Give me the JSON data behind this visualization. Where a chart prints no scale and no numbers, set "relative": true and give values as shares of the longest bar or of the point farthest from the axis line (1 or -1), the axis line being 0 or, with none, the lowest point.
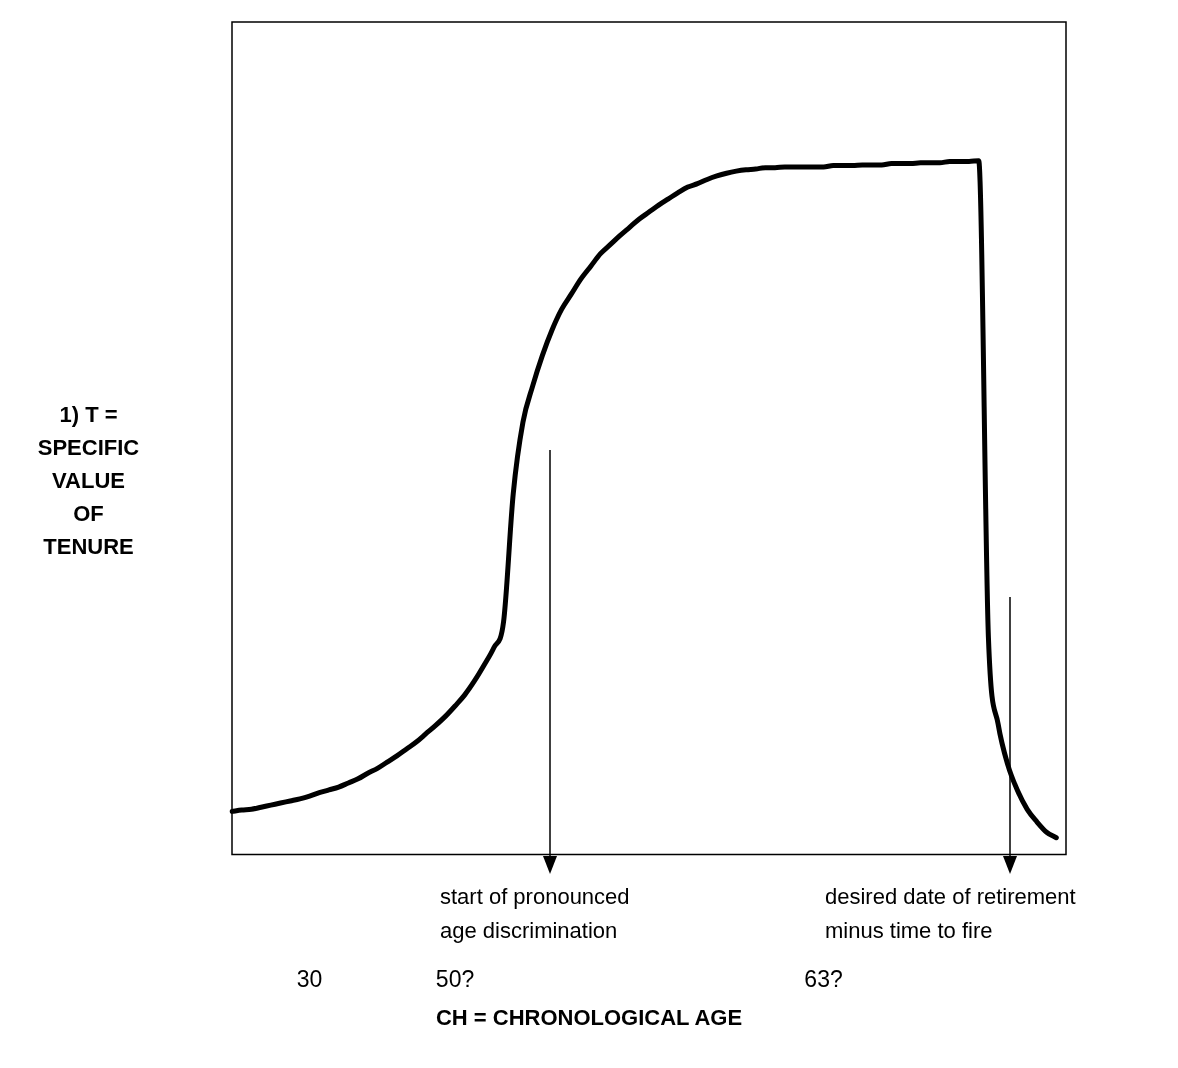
{
  "chart_data": {
    "type": "line",
    "relative": true,
    "xlabel": "CH = CHRONOLOGICAL AGE",
    "ylabel": "1) T = SPECIFIC VALUE OF TENURE",
    "annotations": [
      "start of pronounced age discrimination",
      "desired date of retirement minus time to fire"
    ],
    "categories": [
      null,
      null,
      null,
      null,
      null,
      null,
      null,
      null,
      "30",
      null,
      null,
      null,
      null,
      null,
      null,
      null,
      null,
      null,
      null,
      null,
      null,
      null,
      null,
      "50?",
      null,
      null,
      null,
      null,
      null,
      null,
      null,
      null,
      null,
      null,
      null,
      null,
      null,
      null,
      null,
      null,
      null,
      null,
      null,
      null,
      null,
      null,
      null,
      null,
      null,
      null,
      null,
      null,
      null,
      null,
      null,
      null,
      null,
      null,
      null,
      null,
      null,
      "63?",
      null,
      null,
      null,
      null,
      null,
      null,
      null,
      null,
      null,
      null,
      null,
      null,
      null,
      null,
      null,
      null,
      null,
      null,
      null,
      null,
      null,
      null,
      null,
      null,
      null
    ],
    "series": [
      {
        "color": "#000000",
        "values": [
          0.062,
          0.064,
          0.065,
          0.068,
          0.071,
          0.074,
          0.077,
          0.08,
          0.084,
          0.089,
          0.093,
          0.097,
          0.103,
          0.109,
          0.117,
          0.124,
          0.133,
          0.142,
          0.152,
          0.162,
          0.174,
          0.186,
          0.199,
          0.214,
          0.23,
          0.25,
          0.273,
          0.298,
          0.335,
          0.52,
          0.623,
          0.675,
          0.719,
          0.756,
          0.786,
          0.808,
          0.83,
          0.848,
          0.866,
          0.879,
          0.892,
          0.904,
          0.916,
          0.926,
          0.936,
          0.945,
          0.954,
          0.962,
          0.967,
          0.973,
          0.978,
          0.982,
          0.985,
          0.987,
          0.988,
          0.99,
          0.99,
          0.991,
          0.991,
          0.991,
          0.991,
          0.991,
          0.993,
          0.993,
          0.993,
          0.994,
          0.994,
          0.994,
          0.996,
          0.996,
          0.996,
          0.997,
          0.997,
          0.997,
          0.999,
          0.999,
          0.999,
          1,
          0.313,
          0.188,
          0.129,
          0.092,
          0.065,
          0.047,
          0.032,
          0.024,
          null
        ]
      }
    ]
  }
}
